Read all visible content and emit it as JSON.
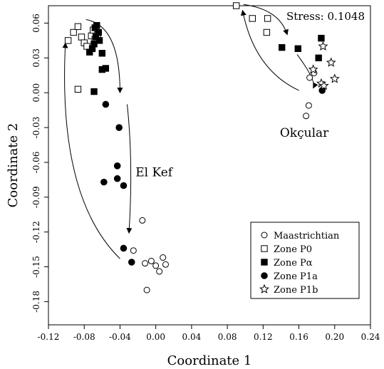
{
  "chart_data": {
    "type": "scatter",
    "xlabel": "Coordinate 1",
    "ylabel": "Coordinate 2",
    "xlim": [
      -0.12,
      0.24
    ],
    "ylim": [
      -0.2,
      0.075
    ],
    "xticks": [
      -0.12,
      -0.08,
      -0.04,
      0.0,
      0.04,
      0.08,
      0.12,
      0.16,
      0.2,
      0.24
    ],
    "xtick_labels": [
      "-0.12",
      "-0.08",
      "-0.04",
      "0.00",
      "0.04",
      "0.08",
      "0.12",
      "0.16",
      "0.20",
      "0.24"
    ],
    "yticks": [
      0.06,
      0.03,
      0.0,
      -0.03,
      -0.06,
      -0.09,
      -0.12,
      -0.15,
      -0.18
    ],
    "ytick_labels": [
      "0.06",
      "0.03",
      "0.00",
      "-0.03",
      "-0.06",
      "-0.09",
      "-0.12",
      "-0.15",
      "-0.18"
    ],
    "grid": false,
    "legend_position": "bottom-right",
    "stress_label": "Stress: 0.1048",
    "annotations": [
      {
        "text": "El Kef",
        "x": -0.002,
        "y": -0.072
      },
      {
        "text": "Okçular",
        "x": 0.166,
        "y": -0.038
      }
    ],
    "series": [
      {
        "name": "Maastrichtian",
        "marker": "circle-open",
        "points": [
          [
            -0.015,
            -0.11
          ],
          [
            -0.025,
            -0.136
          ],
          [
            -0.012,
            -0.147
          ],
          [
            -0.005,
            -0.145
          ],
          [
            0.0,
            -0.149
          ],
          [
            0.004,
            -0.154
          ],
          [
            0.008,
            -0.142
          ],
          [
            0.011,
            -0.148
          ],
          [
            -0.01,
            -0.17
          ],
          [
            0.168,
            -0.02
          ],
          [
            0.171,
            -0.011
          ],
          [
            0.172,
            0.013
          ],
          [
            0.177,
            0.017
          ]
        ]
      },
      {
        "name": "Zone P0",
        "marker": "square-open",
        "points": [
          [
            -0.098,
            0.045
          ],
          [
            -0.092,
            0.052
          ],
          [
            -0.087,
            0.057
          ],
          [
            -0.083,
            0.048
          ],
          [
            -0.08,
            0.043
          ],
          [
            -0.077,
            0.04
          ],
          [
            -0.072,
            0.049
          ],
          [
            -0.07,
            0.054
          ],
          [
            -0.068,
            0.046
          ],
          [
            -0.065,
            0.05
          ],
          [
            -0.087,
            0.003
          ],
          [
            0.09,
            0.075
          ],
          [
            0.108,
            0.064
          ],
          [
            0.125,
            0.064
          ],
          [
            0.124,
            0.052
          ]
        ]
      },
      {
        "name": "Zone Pα",
        "marker": "square-filled",
        "points": [
          [
            -0.074,
            0.035
          ],
          [
            -0.071,
            0.038
          ],
          [
            -0.069,
            0.042
          ],
          [
            -0.067,
            0.048
          ],
          [
            -0.066,
            0.058
          ],
          [
            -0.068,
            0.056
          ],
          [
            -0.064,
            0.052
          ],
          [
            -0.063,
            0.045
          ],
          [
            -0.06,
            0.034
          ],
          [
            -0.06,
            0.02
          ],
          [
            -0.056,
            0.021
          ],
          [
            -0.069,
            0.001
          ],
          [
            0.141,
            0.039
          ],
          [
            0.159,
            0.038
          ],
          [
            0.182,
            0.03
          ],
          [
            0.185,
            0.047
          ]
        ]
      },
      {
        "name": "Zone P1a",
        "marker": "circle-filled",
        "points": [
          [
            -0.056,
            -0.01
          ],
          [
            -0.041,
            -0.03
          ],
          [
            -0.043,
            -0.063
          ],
          [
            -0.043,
            -0.074
          ],
          [
            -0.036,
            -0.08
          ],
          [
            -0.058,
            -0.077
          ],
          [
            -0.036,
            -0.134
          ],
          [
            -0.027,
            -0.146
          ],
          [
            0.186,
            0.002
          ]
        ]
      },
      {
        "name": "Zone P1b",
        "marker": "star-open",
        "points": [
          [
            0.187,
            0.04
          ],
          [
            0.196,
            0.026
          ],
          [
            0.2,
            0.012
          ],
          [
            0.185,
            0.008
          ],
          [
            0.176,
            0.02
          ],
          [
            0.188,
            0.006
          ]
        ]
      }
    ],
    "arrows": [
      {
        "from": [
          -0.078,
          0.063
        ],
        "control": [
          -0.04,
          0.058
        ],
        "to": [
          -0.04,
          0.0
        ]
      },
      {
        "from": [
          -0.032,
          -0.01
        ],
        "control": [
          -0.025,
          -0.06
        ],
        "to": [
          -0.03,
          -0.121
        ]
      },
      {
        "from": [
          -0.04,
          -0.143
        ],
        "control": [
          -0.11,
          -0.09
        ],
        "to": [
          -0.101,
          0.043
        ]
      },
      {
        "from": [
          0.098,
          0.076
        ],
        "control": [
          0.138,
          0.072
        ],
        "to": [
          0.147,
          0.05
        ]
      },
      {
        "from": [
          0.158,
          0.033
        ],
        "control": [
          0.18,
          0.01
        ],
        "to": [
          0.176,
          0.004
        ]
      },
      {
        "from": [
          0.16,
          0.002
        ],
        "control": [
          0.11,
          0.02
        ],
        "to": [
          0.097,
          0.071
        ]
      }
    ]
  }
}
